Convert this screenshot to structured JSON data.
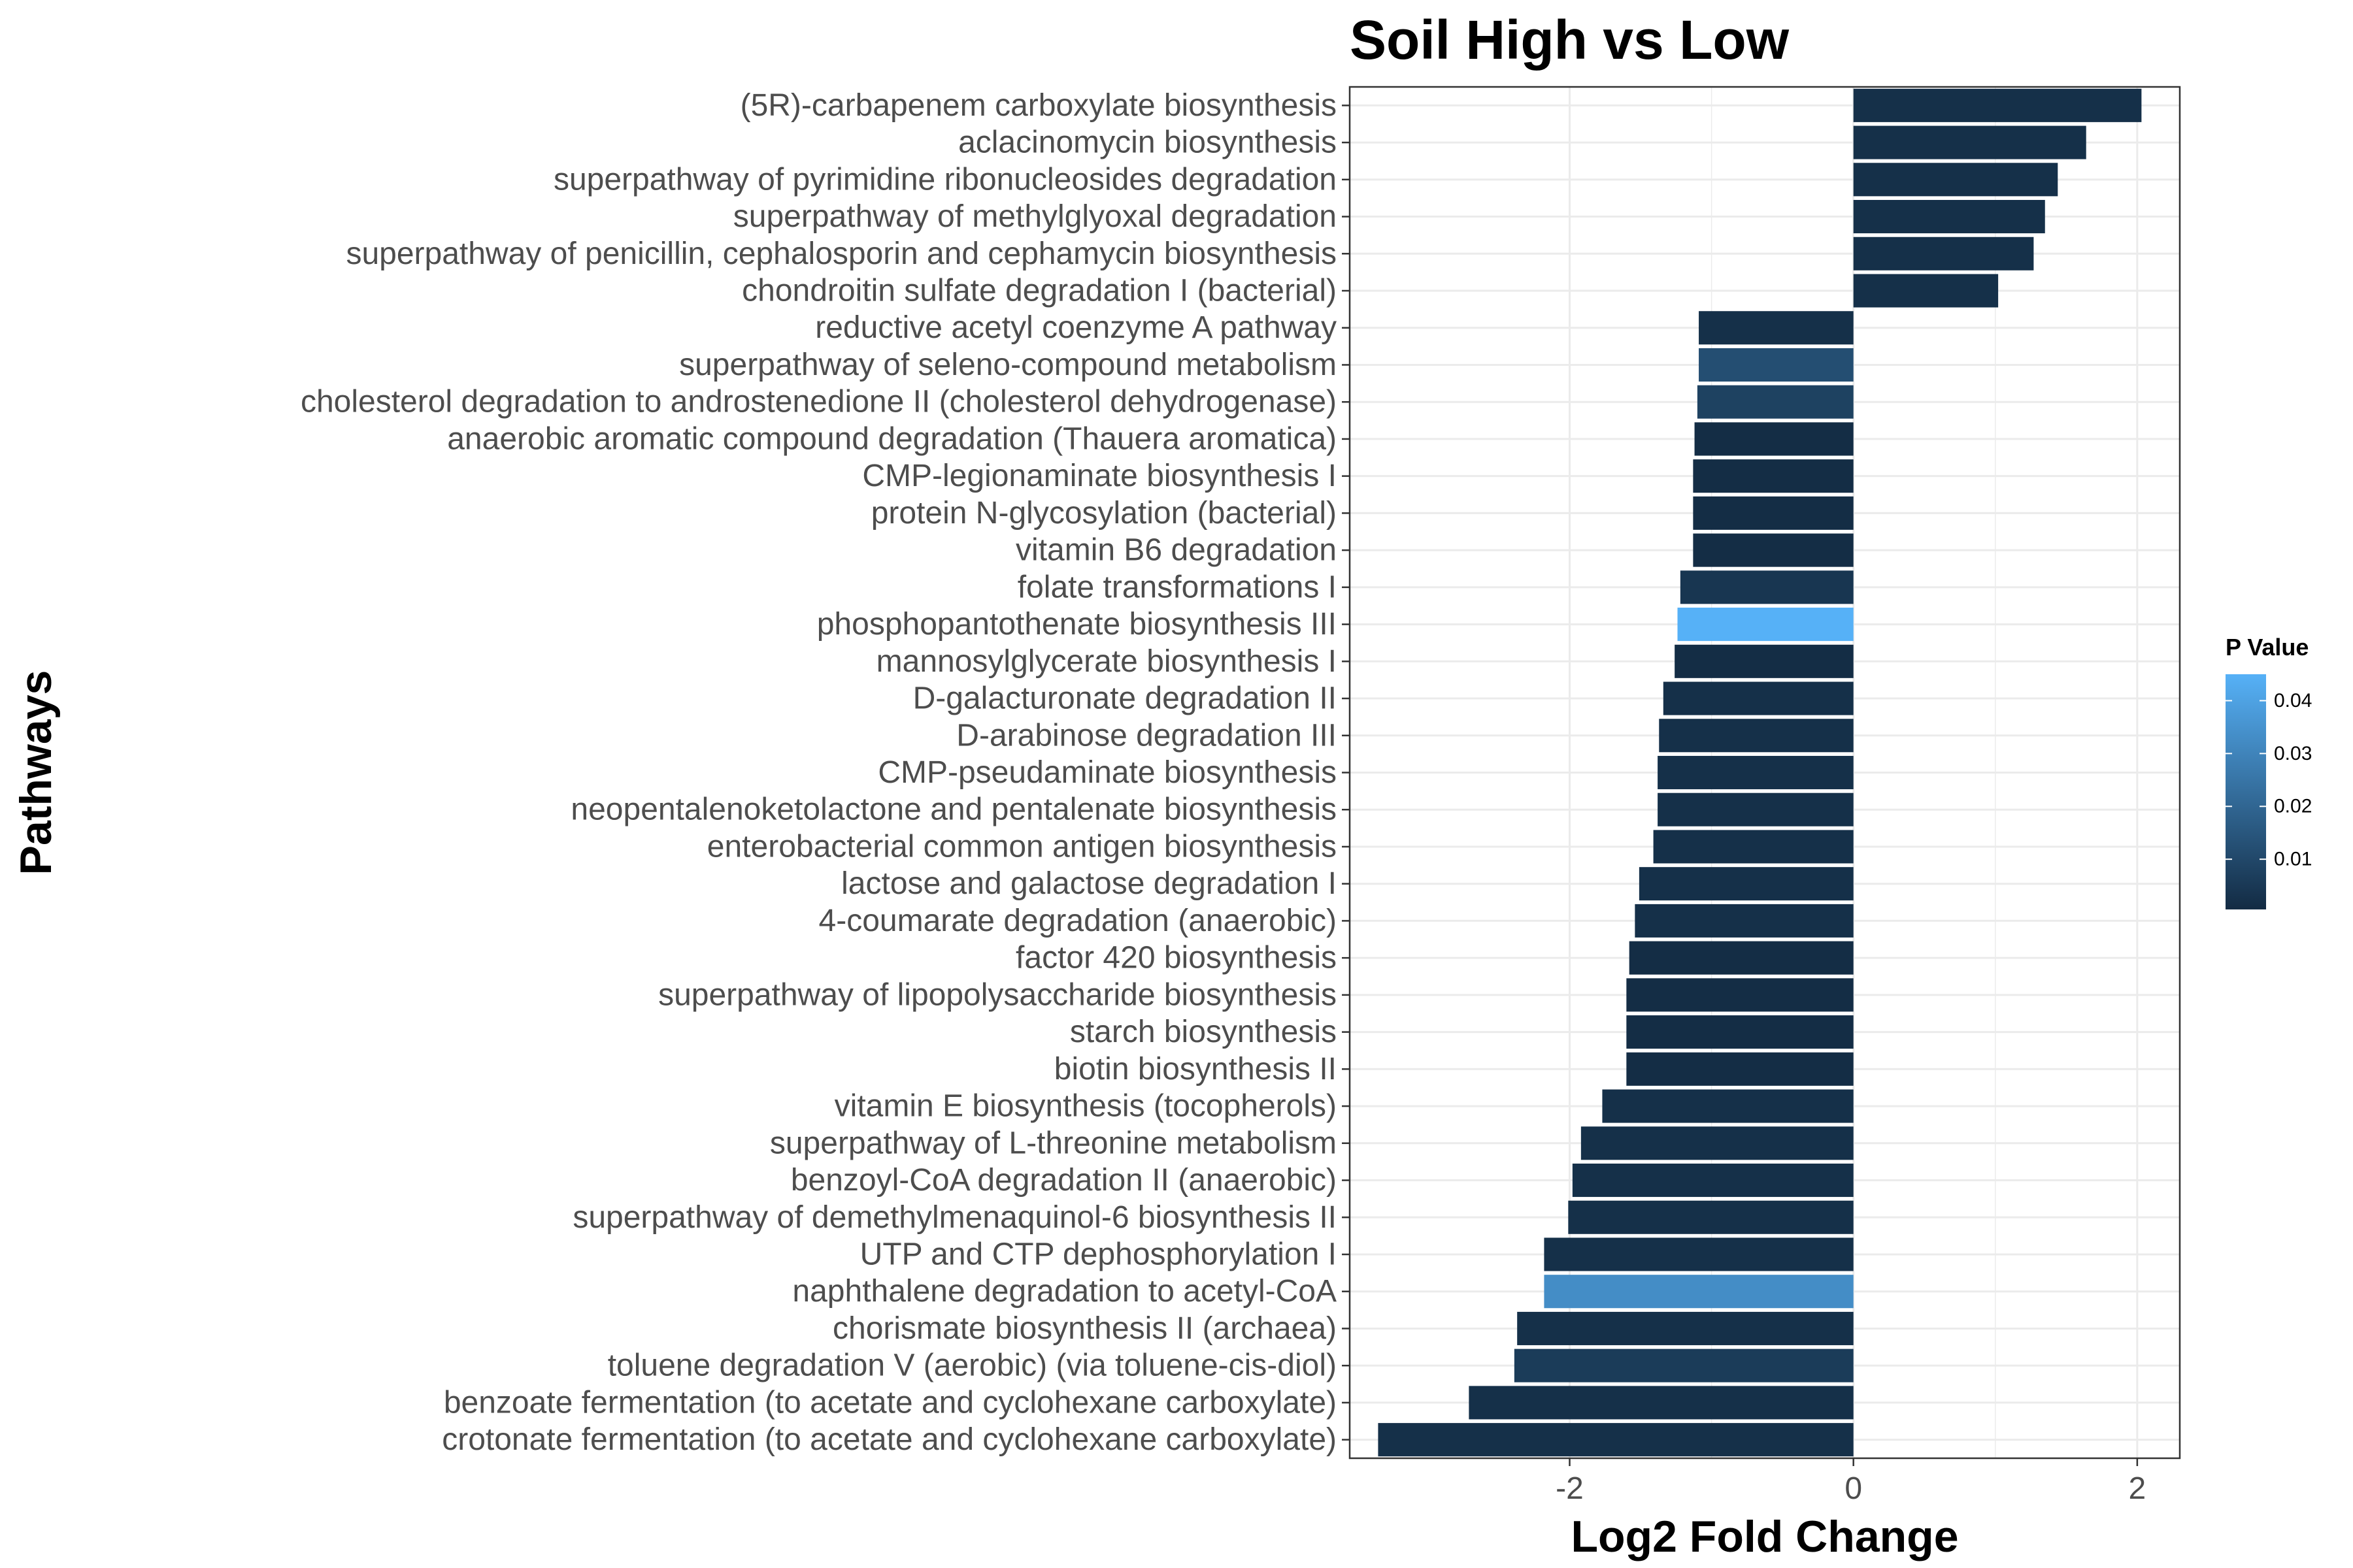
{
  "chart_data": {
    "type": "bar",
    "orientation": "horizontal",
    "title": "Soil High vs Low",
    "xlabel": "Log2 Fold Change",
    "ylabel": "Pathways",
    "xlim": [
      -3.55,
      2.3
    ],
    "xticks": [
      -2,
      0,
      2
    ],
    "xtick_labels": [
      "-2",
      "0",
      "2"
    ],
    "grid": true,
    "legend": {
      "title": "P Value",
      "position": "right",
      "range": [
        0.0005,
        0.045
      ],
      "ticks": [
        0.01,
        0.02,
        0.03,
        0.04
      ],
      "tick_labels": [
        "0.01",
        "0.02",
        "0.03",
        "0.04"
      ],
      "color_low": "#132b43",
      "color_high": "#56b1f7"
    },
    "categories": [
      "(5R)-carbapenem carboxylate biosynthesis",
      "aclacinomycin biosynthesis",
      "superpathway of pyrimidine ribonucleosides degradation",
      "superpathway of methylglyoxal degradation",
      "superpathway of penicillin, cephalosporin and cephamycin biosynthesis",
      "chondroitin sulfate degradation I (bacterial)",
      "reductive acetyl coenzyme A pathway",
      "superpathway of seleno-compound metabolism",
      "cholesterol degradation to androstenedione II (cholesterol dehydrogenase)",
      "anaerobic aromatic compound degradation (Thauera aromatica)",
      "CMP-legionaminate biosynthesis I",
      "protein N-glycosylation (bacterial)",
      "vitamin B6 degradation",
      "folate transformations I",
      "phosphopantothenate biosynthesis III",
      "mannosylglycerate biosynthesis I",
      "D-galacturonate degradation II",
      "D-arabinose degradation III",
      "CMP-pseudaminate biosynthesis",
      "neopentalenoketolactone and pentalenate biosynthesis",
      "enterobacterial common antigen biosynthesis",
      "lactose and galactose degradation I",
      "4-coumarate degradation (anaerobic)",
      "factor 420 biosynthesis",
      "superpathway of lipopolysaccharide biosynthesis",
      "starch biosynthesis",
      "biotin biosynthesis II",
      "vitamin E biosynthesis (tocopherols)",
      "superpathway of L-threonine metabolism",
      "benzoyl-CoA degradation II (anaerobic)",
      "superpathway of demethylmenaquinol-6 biosynthesis II",
      "UTP and CTP dephosphorylation I",
      "naphthalene degradation to acetyl-CoA",
      "chorismate biosynthesis II (archaea)",
      "toluene degradation V (aerobic) (via toluene-cis-diol)",
      "benzoate fermentation (to acetate and cyclohexane carboxylate)",
      "crotonate fermentation (to acetate and cyclohexane carboxylate)"
    ],
    "values": [
      2.03,
      1.64,
      1.44,
      1.35,
      1.27,
      1.02,
      -1.09,
      -1.09,
      -1.1,
      -1.12,
      -1.13,
      -1.13,
      -1.13,
      -1.22,
      -1.24,
      -1.26,
      -1.34,
      -1.37,
      -1.38,
      -1.38,
      -1.41,
      -1.51,
      -1.54,
      -1.58,
      -1.6,
      -1.6,
      -1.6,
      -1.77,
      -1.92,
      -1.98,
      -2.01,
      -2.18,
      -2.18,
      -2.37,
      -2.39,
      -2.71,
      -3.35
    ],
    "p_values": [
      0.002,
      0.002,
      0.002,
      0.002,
      0.002,
      0.002,
      0.002,
      0.012,
      0.008,
      0.001,
      0.001,
      0.001,
      0.001,
      0.004,
      0.045,
      0.001,
      0.002,
      0.002,
      0.002,
      0.002,
      0.002,
      0.002,
      0.002,
      0.001,
      0.001,
      0.001,
      0.001,
      0.002,
      0.002,
      0.002,
      0.002,
      0.002,
      0.033,
      0.002,
      0.006,
      0.002,
      0.002
    ]
  }
}
